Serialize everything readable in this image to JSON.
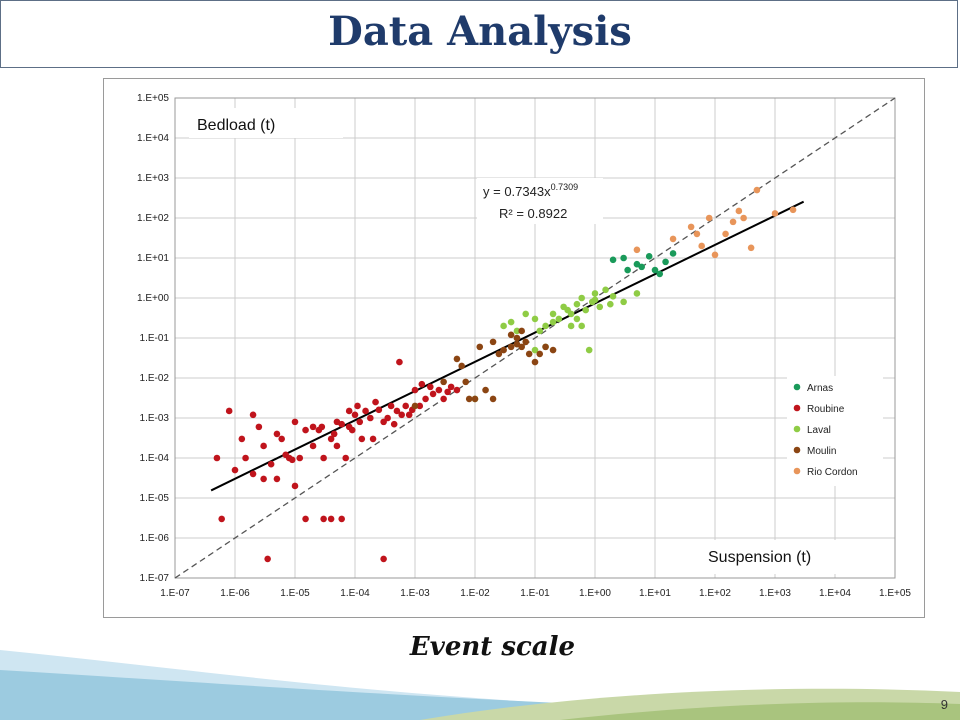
{
  "slide": {
    "title": "Data Analysis",
    "subtitle": "Event scale",
    "page_number": "9"
  },
  "colors": {
    "title": "#1f3b6b",
    "Arnas": "#1a9a5a",
    "Roubine": "#c0141c",
    "Laval": "#8fcc45",
    "Moulin": "#8b4513",
    "Rio Cordon": "#e8955a",
    "fit_line": "#000000",
    "identity_line": "#555555"
  },
  "chart_data": {
    "type": "scatter",
    "x_scale": "log",
    "y_scale": "log",
    "xlim": [
      1e-07,
      100000.0
    ],
    "ylim": [
      1e-07,
      100000.0
    ],
    "x_ticks": [
      "1.E-07",
      "1.E-06",
      "1.E-05",
      "1.E-04",
      "1.E-03",
      "1.E-02",
      "1.E-01",
      "1.E+00",
      "1.E+01",
      "1.E+02",
      "1.E+03",
      "1.E+04",
      "1.E+05"
    ],
    "y_ticks": [
      "1.E-07",
      "1.E-06",
      "1.E-05",
      "1.E-04",
      "1.E-03",
      "1.E-02",
      "1.E-01",
      "1.E+00",
      "1.E+01",
      "1.E+02",
      "1.E+03",
      "1.E+04",
      "1.E+05"
    ],
    "grid": true,
    "ylabel": "Bedload (t)",
    "xlabel": "Suspension (t)",
    "legend_position": "bottom-right",
    "equation": "y = 0.7343x",
    "equation_exponent": "0.7309",
    "r_squared": "R² = 0.8922",
    "fit": {
      "a": 0.7343,
      "b": 0.7309,
      "x_range": [
        4e-07,
        3000.0
      ]
    },
    "identity_line": true,
    "series": [
      {
        "name": "Arnas",
        "points": [
          [
            2,
            9
          ],
          [
            3,
            10
          ],
          [
            3.5,
            5
          ],
          [
            5,
            7
          ],
          [
            6,
            6
          ],
          [
            8,
            11
          ],
          [
            10,
            5
          ],
          [
            12,
            4
          ],
          [
            15,
            8
          ],
          [
            20,
            13
          ]
        ]
      },
      {
        "name": "Roubine",
        "points": [
          [
            5e-07,
            0.0001
          ],
          [
            6e-07,
            3e-06
          ],
          [
            8e-07,
            0.0015
          ],
          [
            1e-06,
            5e-05
          ],
          [
            1.3e-06,
            0.0003
          ],
          [
            1.5e-06,
            0.0001
          ],
          [
            2e-06,
            0.0012
          ],
          [
            2e-06,
            4e-05
          ],
          [
            2.5e-06,
            0.0006
          ],
          [
            3e-06,
            0.0002
          ],
          [
            3e-06,
            3e-05
          ],
          [
            3.5e-06,
            3e-07
          ],
          [
            4e-06,
            7e-05
          ],
          [
            5e-06,
            0.0004
          ],
          [
            5e-06,
            3e-05
          ],
          [
            6e-06,
            0.0003
          ],
          [
            8e-06,
            0.0001
          ],
          [
            1e-05,
            2e-05
          ],
          [
            1e-05,
            0.0008
          ],
          [
            1.2e-05,
            0.0001
          ],
          [
            1.5e-05,
            3e-06
          ],
          [
            1.5e-05,
            0.0005
          ],
          [
            2e-05,
            0.0002
          ],
          [
            2e-05,
            0.0006
          ],
          [
            2.5e-05,
            0.0005
          ],
          [
            3e-05,
            0.0001
          ],
          [
            3e-05,
            3e-06
          ],
          [
            4e-05,
            3e-06
          ],
          [
            4e-05,
            0.0003
          ],
          [
            5e-05,
            0.0008
          ],
          [
            5e-05,
            0.0002
          ],
          [
            6e-05,
            0.0007
          ],
          [
            6e-05,
            3e-06
          ],
          [
            7e-05,
            0.0001
          ],
          [
            8e-05,
            0.0006
          ],
          [
            9e-05,
            0.0005
          ],
          [
            0.0001,
            0.0012
          ],
          [
            0.00012,
            0.0008
          ],
          [
            0.00013,
            0.0003
          ],
          [
            0.00015,
            0.0015
          ],
          [
            0.00018,
            0.001
          ],
          [
            0.0002,
            0.0003
          ],
          [
            0.00022,
            0.0025
          ],
          [
            0.00025,
            0.0016
          ],
          [
            0.0003,
            0.0008
          ],
          [
            0.0003,
            3e-07
          ],
          [
            0.00035,
            0.001
          ],
          [
            0.0004,
            0.002
          ],
          [
            0.00045,
            0.0007
          ],
          [
            0.0005,
            0.0015
          ],
          [
            0.00055,
            0.025
          ],
          [
            0.0006,
            0.0012
          ],
          [
            0.0007,
            0.002
          ],
          [
            0.0008,
            0.0012
          ],
          [
            0.0009,
            0.0016
          ],
          [
            0.001,
            0.005
          ],
          [
            0.0012,
            0.002
          ],
          [
            0.0013,
            0.007
          ],
          [
            0.0015,
            0.003
          ],
          [
            0.0018,
            0.006
          ],
          [
            0.002,
            0.004
          ],
          [
            0.0025,
            0.005
          ],
          [
            0.003,
            0.003
          ],
          [
            0.0035,
            0.0045
          ],
          [
            0.004,
            0.006
          ],
          [
            0.005,
            0.005
          ],
          [
            7e-06,
            0.00012
          ],
          [
            9e-06,
            9e-05
          ],
          [
            0.00011,
            0.002
          ],
          [
            2.8e-05,
            0.0006
          ],
          [
            4.5e-05,
            0.0004
          ],
          [
            8e-05,
            0.0015
          ]
        ]
      },
      {
        "name": "Laval",
        "points": [
          [
            0.01,
            0.003
          ],
          [
            0.03,
            0.2
          ],
          [
            0.04,
            0.25
          ],
          [
            0.05,
            0.15
          ],
          [
            0.07,
            0.4
          ],
          [
            0.1,
            0.3
          ],
          [
            0.1,
            0.05
          ],
          [
            0.12,
            0.15
          ],
          [
            0.15,
            0.2
          ],
          [
            0.2,
            0.25
          ],
          [
            0.2,
            0.4
          ],
          [
            0.25,
            0.3
          ],
          [
            0.3,
            0.6
          ],
          [
            0.35,
            0.5
          ],
          [
            0.4,
            0.4
          ],
          [
            0.5,
            0.7
          ],
          [
            0.5,
            0.3
          ],
          [
            0.6,
            1.0
          ],
          [
            0.7,
            0.5
          ],
          [
            0.8,
            0.05
          ],
          [
            0.9,
            0.8
          ],
          [
            1,
            1.3
          ],
          [
            1,
            0.9
          ],
          [
            1.2,
            0.6
          ],
          [
            1.5,
            1.6
          ],
          [
            1.8,
            0.7
          ],
          [
            2,
            1.1
          ],
          [
            3,
            0.8
          ],
          [
            5,
            1.3
          ],
          [
            0.15,
            0.06
          ],
          [
            0.6,
            0.2
          ],
          [
            0.4,
            0.2
          ]
        ]
      },
      {
        "name": "Moulin",
        "points": [
          [
            0.001,
            0.002
          ],
          [
            0.003,
            0.008
          ],
          [
            0.005,
            0.03
          ],
          [
            0.006,
            0.02
          ],
          [
            0.007,
            0.008
          ],
          [
            0.008,
            0.003
          ],
          [
            0.01,
            0.003
          ],
          [
            0.012,
            0.06
          ],
          [
            0.015,
            0.005
          ],
          [
            0.02,
            0.08
          ],
          [
            0.02,
            0.003
          ],
          [
            0.025,
            0.04
          ],
          [
            0.03,
            0.05
          ],
          [
            0.04,
            0.06
          ],
          [
            0.05,
            0.1
          ],
          [
            0.05,
            0.07
          ],
          [
            0.06,
            0.06
          ],
          [
            0.07,
            0.08
          ],
          [
            0.08,
            0.04
          ],
          [
            0.1,
            0.025
          ],
          [
            0.12,
            0.04
          ],
          [
            0.15,
            0.06
          ],
          [
            0.2,
            0.05
          ],
          [
            0.04,
            0.12
          ],
          [
            0.06,
            0.15
          ]
        ]
      },
      {
        "name": "Rio Cordon",
        "points": [
          [
            5,
            16
          ],
          [
            20,
            30
          ],
          [
            40,
            60
          ],
          [
            50,
            40
          ],
          [
            60,
            20
          ],
          [
            80,
            100
          ],
          [
            100,
            12
          ],
          [
            150,
            40
          ],
          [
            200,
            80
          ],
          [
            250,
            150
          ],
          [
            300,
            100
          ],
          [
            400,
            18
          ],
          [
            500,
            500
          ],
          [
            1000,
            130
          ],
          [
            2000,
            160
          ]
        ]
      }
    ]
  }
}
